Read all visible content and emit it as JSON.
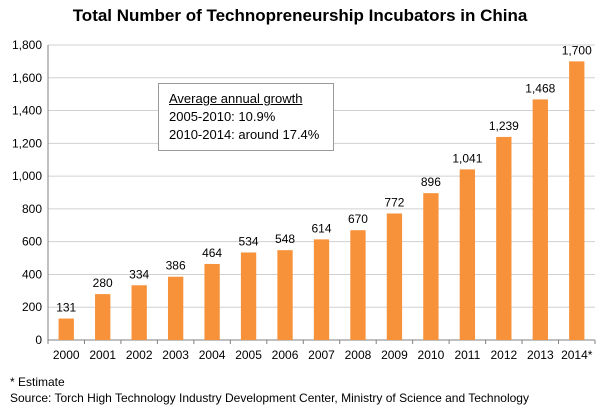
{
  "title": "Total Number of Technopreneurship Incubators in China",
  "growth_box": {
    "heading": "Average annual growth",
    "line1": "2005-2010: 10.9%",
    "line2": "2010-2014: around 17.4%"
  },
  "notes": {
    "estimate": "* Estimate",
    "source": "Source: Torch High Technology Industry Development Center, Ministry of Science and Technology"
  },
  "colors": {
    "bar": "#f7923a",
    "grid": "#d0d0d0",
    "axis": "#808080"
  },
  "chart_data": {
    "type": "bar",
    "title": "Total Number of Technopreneurship Incubators in China",
    "categories": [
      "2000",
      "2001",
      "2002",
      "2003",
      "2004",
      "2005",
      "2006",
      "2007",
      "2008",
      "2009",
      "2010",
      "2011",
      "2012",
      "2013",
      "2014*"
    ],
    "values": [
      131,
      280,
      334,
      386,
      464,
      534,
      548,
      614,
      670,
      772,
      896,
      1041,
      1239,
      1468,
      1700
    ],
    "value_labels": [
      "131",
      "280",
      "334",
      "386",
      "464",
      "534",
      "548",
      "614",
      "670",
      "772",
      "896",
      "1,041",
      "1,239",
      "1,468",
      "1,700"
    ],
    "ylim": [
      0,
      1800
    ],
    "yticks": [
      0,
      200,
      400,
      600,
      800,
      1000,
      1200,
      1400,
      1600,
      1800
    ],
    "ytick_labels": [
      "0",
      "200",
      "400",
      "600",
      "800",
      "1,000",
      "1,200",
      "1,400",
      "1,600",
      "1,800"
    ],
    "grid": true,
    "xlabel": "",
    "ylabel": ""
  }
}
